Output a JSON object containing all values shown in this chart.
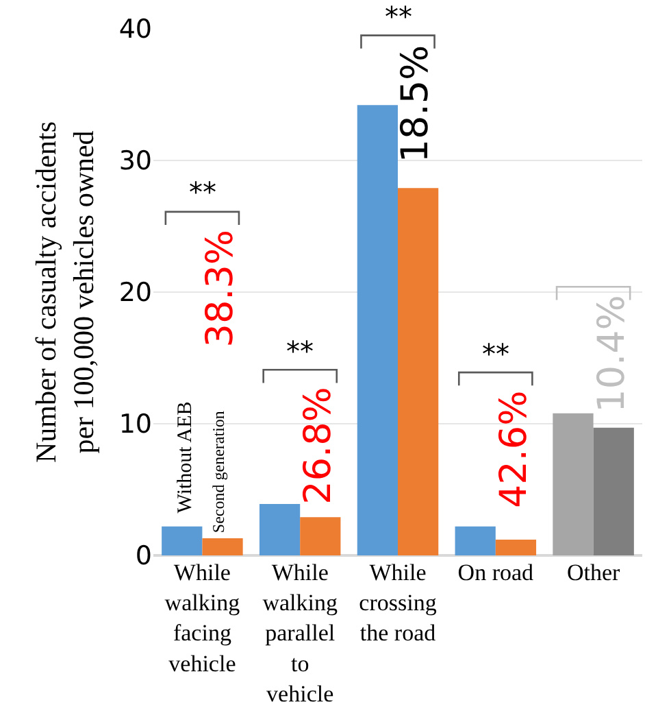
{
  "chart_data": {
    "type": "bar",
    "ylabel": "Number of casualty accidents\nper 100,000 vehicles owned",
    "categories": [
      "While walking facing vehicle",
      "While walking parallel to vehicle",
      "While crossing the road",
      "On road",
      "Other"
    ],
    "series": [
      {
        "name": "Without AEB",
        "colors": [
          "#5b9bd5",
          "#5b9bd5",
          "#5b9bd5",
          "#5b9bd5",
          "#a6a6a6"
        ],
        "values": [
          2.2,
          3.9,
          34.2,
          2.2,
          10.8
        ]
      },
      {
        "name": "Second generation",
        "colors": [
          "#ed7d31",
          "#ed7d31",
          "#ed7d31",
          "#ed7d31",
          "#7f7f7f"
        ],
        "values": [
          1.3,
          2.9,
          27.9,
          1.2,
          9.7
        ]
      }
    ],
    "ylim": [
      0,
      40
    ],
    "yticks": [
      0,
      10,
      20,
      30,
      40
    ],
    "grid": "y",
    "legend": false,
    "annotations": [
      "**",
      "**",
      "**",
      "**",
      "38.3%",
      "26.8%",
      "18.5%",
      "42.6%",
      "10.4%"
    ]
  }
}
